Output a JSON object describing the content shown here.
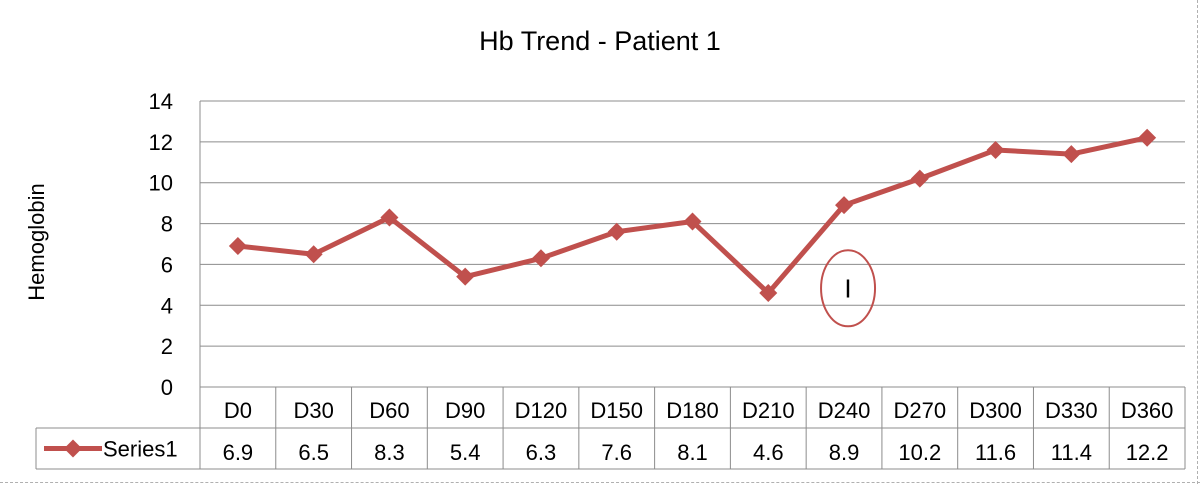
{
  "chart_data": {
    "type": "line",
    "title": "Hb Trend - Patient 1",
    "xlabel": "",
    "ylabel": "Hemoglobin",
    "categories": [
      "D0",
      "D30",
      "D60",
      "D90",
      "D120",
      "D150",
      "D180",
      "D210",
      "D240",
      "D270",
      "D300",
      "D330",
      "D360"
    ],
    "series": [
      {
        "name": "Series1",
        "values": [
          6.9,
          6.5,
          8.3,
          5.4,
          6.3,
          7.6,
          8.1,
          4.6,
          8.9,
          10.2,
          11.6,
          11.4,
          12.2
        ]
      }
    ],
    "ylim": [
      0,
      14
    ],
    "yticks": [
      0,
      2,
      4,
      6,
      8,
      10,
      12,
      14
    ],
    "grid": true,
    "data_table": true,
    "series_color": "#c0504d",
    "annotation": {
      "text": "I",
      "category": "D240",
      "y": 4.0,
      "color": "#c0504d"
    }
  }
}
